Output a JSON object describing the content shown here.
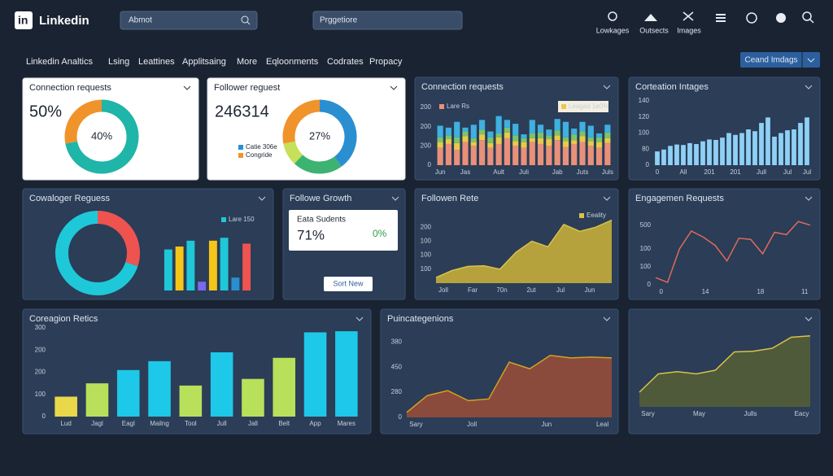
{
  "header": {
    "brand": "Linkedin",
    "search": "Abmot",
    "search2": "Prggetiore",
    "icons": [
      "Lowkages",
      "Outsects",
      "Images"
    ]
  },
  "nav": {
    "items": [
      "Linkedin Analtics",
      "Lsing",
      "Leattines",
      "Applitsaing",
      "More",
      "Eqloonments",
      "Codrates",
      "Propacy"
    ],
    "button": "Ceand Imdags"
  },
  "growth_card": {
    "title": "Followe Growth",
    "label": "Eata Sudents",
    "value": "71%",
    "change": "0%",
    "button": "Sort New"
  },
  "chart_data": [
    {
      "type": "donut",
      "title": "Connection requests",
      "kpi": "50%",
      "center": "40%",
      "values": [
        72,
        28
      ],
      "colors": [
        "#1fb5a8",
        "#f0932b"
      ]
    },
    {
      "type": "donut",
      "title": "Follower reguest",
      "kpi": "246314",
      "center": "27%",
      "values": [
        40,
        22,
        10,
        28
      ],
      "colors": [
        "#2a8fd0",
        "#3cb371",
        "#c6e05a",
        "#f0932b"
      ],
      "labels": [
        "Catie 306e",
        null,
        null,
        "Congride"
      ]
    },
    {
      "type": "stacked-bar",
      "title": "Connection requests",
      "categories": [
        "Jun",
        null,
        null,
        "Jas",
        null,
        null,
        null,
        "Ault",
        null,
        null,
        "Juli",
        null,
        null,
        null,
        "Jab",
        null,
        null,
        "Juts",
        null,
        null,
        "Juls"
      ],
      "series": [
        {
          "name": "Lare Rs",
          "color": "#e8907a",
          "values": [
            90,
            110,
            80,
            120,
            100,
            130,
            90,
            110,
            140,
            100,
            90,
            120,
            110,
            100,
            130,
            95,
            110,
            120,
            100,
            90,
            115
          ]
        },
        {
          "name": "Leagad 1e0%",
          "color": "#e9c94a",
          "values": [
            30,
            25,
            35,
            30,
            20,
            30,
            25,
            35,
            30,
            25,
            30,
            20,
            30,
            35,
            25,
            30,
            20,
            30,
            25,
            30,
            25
          ]
        },
        {
          "color": "#7cc46a",
          "values": [
            25,
            20,
            30,
            25,
            20,
            25,
            30,
            20,
            25,
            30,
            20,
            25,
            30,
            20,
            25,
            20,
            30,
            25,
            20,
            25,
            30
          ]
        },
        {
          "color": "#3fb0e0",
          "values": [
            60,
            40,
            80,
            20,
            70,
            50,
            30,
            90,
            40,
            60,
            20,
            70,
            40,
            30,
            60,
            80,
            30,
            50,
            60,
            20,
            40
          ]
        }
      ],
      "ylim": [
        0,
        300
      ],
      "yticks": [
        0,
        {
          "value": 100,
          "label": "200"
        },
        200,
        {
          "value": 300,
          "label": "200"
        }
      ]
    },
    {
      "type": "bar",
      "title": "Corteation Intages",
      "color": "#8fd0f5",
      "categories": [
        "0",
        null,
        null,
        null,
        "All",
        null,
        null,
        null,
        "201",
        null,
        null,
        null,
        "201",
        null,
        null,
        null,
        "Jull",
        null,
        null,
        null,
        "Jul",
        null,
        null,
        "Jul"
      ],
      "values": [
        30,
        34,
        42,
        45,
        44,
        48,
        46,
        52,
        56,
        55,
        60,
        70,
        66,
        70,
        78,
        74,
        92,
        104,
        62,
        70,
        76,
        78,
        92,
        104
      ],
      "ylim": [
        0,
        140
      ],
      "yticks": [
        0,
        {
          "value": 35,
          "label": "80"
        },
        {
          "value": 70,
          "label": "100"
        },
        {
          "value": 105,
          "label": "120"
        },
        140
      ]
    },
    {
      "type": "donut",
      "title": "Cowaloger Reguess",
      "values": [
        30,
        70
      ],
      "colors": [
        "#ef5350",
        "#1ec8d8"
      ]
    },
    {
      "type": "bar",
      "legend": "Lare 150",
      "legend_color": "#1ec8d8",
      "values": [
        70,
        75,
        85,
        15,
        85,
        90,
        22,
        80
      ],
      "colors": [
        "#1ec8d8",
        "#f5c518",
        "#1ec8d8",
        "#7b68ee",
        "#f5c518",
        "#1ec8d8",
        "#2a8fd0",
        "#ef5350"
      ],
      "ylim": [
        0,
        100
      ]
    },
    {
      "type": "area",
      "title": "Followen Rete",
      "legend": "Eeality",
      "color": "#d8c24a",
      "fill": "#b5a23d",
      "categories": [
        "Joll",
        null,
        "Far",
        null,
        "70n",
        null,
        "2ut",
        null,
        "Jul",
        null,
        "Jun",
        null
      ],
      "values": [
        20,
        45,
        60,
        62,
        50,
        110,
        150,
        130,
        210,
        185,
        200,
        225
      ],
      "ylim": [
        0,
        250
      ],
      "yticks": [
        {
          "value": 50,
          "label": "100"
        },
        100,
        {
          "value": 150,
          "label": "100"
        },
        200
      ]
    },
    {
      "type": "line",
      "title": "Engagemen Requests",
      "color": "#e06a5a",
      "categories": [
        "0",
        null,
        null,
        null,
        "14",
        null,
        null,
        null,
        null,
        "18",
        null,
        null,
        null,
        "11"
      ],
      "values": [
        60,
        20,
        300,
        450,
        400,
        330,
        200,
        390,
        380,
        260,
        440,
        420,
        530,
        500
      ],
      "ylim": [
        0,
        600
      ],
      "yticks": [
        0,
        {
          "value": 150,
          "label": "100"
        },
        {
          "value": 300,
          "label": "100"
        },
        500
      ]
    },
    {
      "type": "bar",
      "title": "Coreagion Retics",
      "categories": [
        "Lud",
        "Jagl",
        "Eagl",
        "Mailng",
        "Tool",
        "Jull",
        "Jall",
        "Belt",
        "App",
        "Mares"
      ],
      "values": [
        90,
        150,
        210,
        250,
        140,
        290,
        170,
        265,
        380,
        385
      ],
      "colors": [
        "#e9d84a",
        "#b8e05a",
        "#1ec8e8",
        "#1ec8e8",
        "#b8e05a",
        "#1ec8e8",
        "#b8e05a",
        "#b8e05a",
        "#1ec8e8",
        "#1ec8e8"
      ],
      "ylim": [
        0,
        400
      ],
      "yticks": [
        0,
        100,
        200,
        {
          "value": 300,
          "label": "200"
        },
        {
          "value": 400,
          "label": "300"
        }
      ]
    },
    {
      "type": "area",
      "title": "Puincategenions",
      "color": "#d8a020",
      "fill": "#8a4a3c",
      "categories": [
        "Sary",
        null,
        null,
        "Joll",
        null,
        null,
        null,
        "Jun",
        null,
        null,
        "Leal"
      ],
      "values": [
        30,
        130,
        160,
        100,
        110,
        330,
        290,
        370,
        355,
        360,
        355
      ],
      "ylim": [
        0,
        500
      ],
      "yticks": [
        0,
        {
          "value": 150,
          "label": "280"
        },
        {
          "value": 300,
          "label": "450"
        },
        {
          "value": 450,
          "label": "380"
        }
      ]
    },
    {
      "type": "area",
      "color": "#d8c24a",
      "fill": "#4f5a3a",
      "categories": [
        "Sary",
        null,
        null,
        "May",
        null,
        null,
        "Julls",
        null,
        null,
        "Eacy"
      ],
      "values": [
        20,
        45,
        48,
        45,
        50,
        75,
        76,
        80,
        95,
        97
      ],
      "ylim": [
        0,
        100
      ]
    }
  ]
}
